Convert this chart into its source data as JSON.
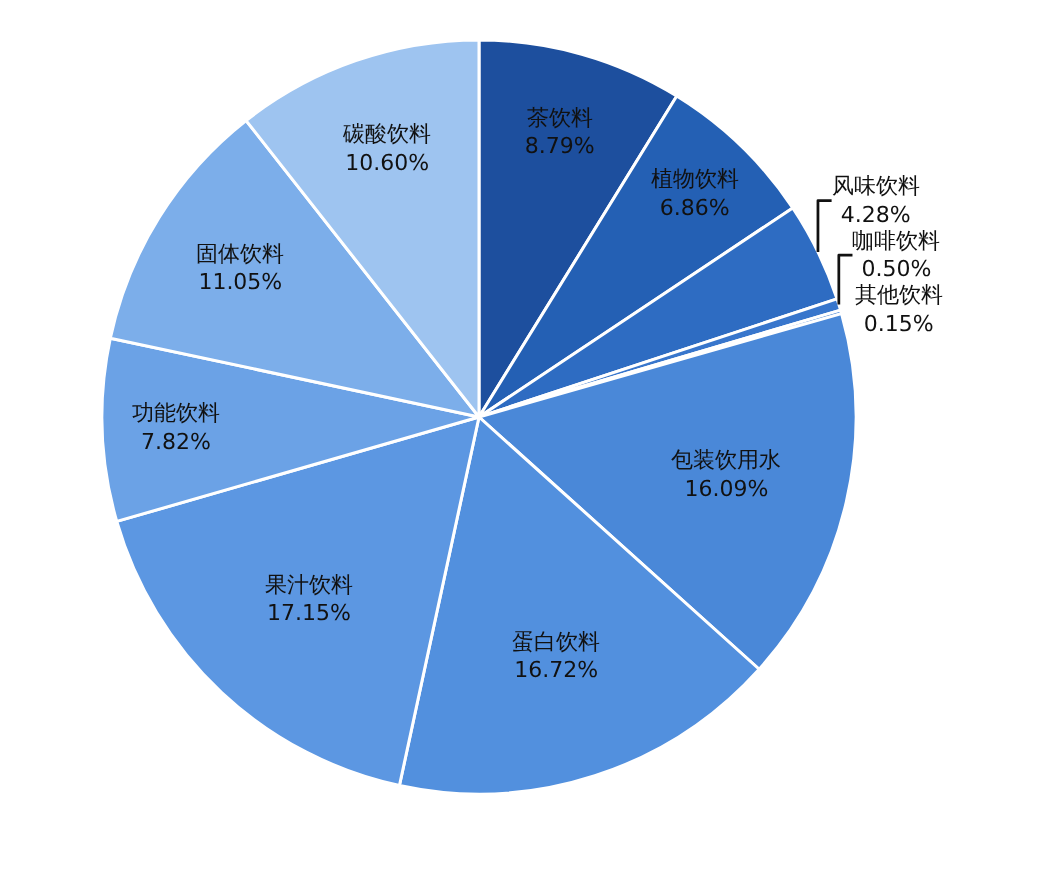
{
  "chart_data": {
    "type": "pie",
    "categories": [
      "茶饮料",
      "植物饮料",
      "风味饮料",
      "咖啡饮料",
      "其他饮料",
      "包装饮用水",
      "蛋白饮料",
      "果汁饮料",
      "功能饮料",
      "固体饮料",
      "碳酸饮料"
    ],
    "values": [
      8.79,
      6.86,
      4.28,
      0.5,
      0.15,
      16.09,
      16.72,
      17.15,
      7.82,
      11.05,
      10.6
    ],
    "value_labels": [
      "8.79%",
      "6.86%",
      "4.28%",
      "0.50%",
      "0.15%",
      "16.09%",
      "16.72%",
      "17.15%",
      "7.82%",
      "11.05%",
      "10.60%"
    ],
    "colors": [
      "#1d4f9e",
      "#2460b4",
      "#2e6cc2",
      "#3876cc",
      "#4381d4",
      "#4a88d8",
      "#5290de",
      "#5c97e2",
      "#6ba2e6",
      "#7caeea",
      "#9ec4f0"
    ],
    "legend": false
  }
}
